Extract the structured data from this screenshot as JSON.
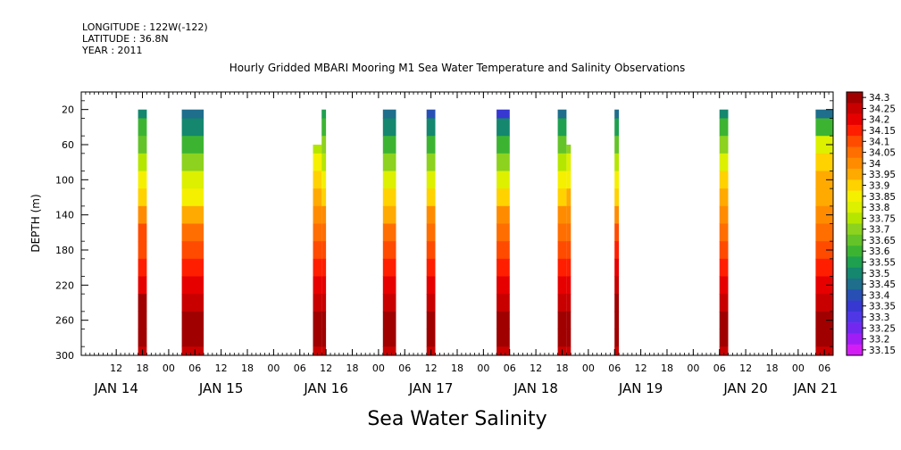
{
  "header": {
    "longitude": "LONGITUDE : 122W(-122)",
    "latitude": "LATITUDE : 36.8N",
    "year": "YEAR : 2011",
    "title": "Hourly Gridded MBARI Mooring M1 Sea Water Temperature and Salinity Observations"
  },
  "chart_data": {
    "type": "heatmap",
    "title": "Hourly Gridded MBARI Mooring M1 Sea Water Temperature and Salinity Observations",
    "xlabel": "Sea Water Salinity",
    "ylabel": "DEPTH (m)",
    "x_tick_labels": [
      "12",
      "18",
      "00",
      "06",
      "12",
      "18",
      "00",
      "06",
      "12",
      "18",
      "00",
      "06",
      "12",
      "18",
      "00",
      "06",
      "12",
      "18",
      "00",
      "06",
      "12",
      "18",
      "00",
      "06",
      "12",
      "18",
      "00",
      "06"
    ],
    "x_tick_hours": [
      12,
      18,
      24,
      30,
      36,
      42,
      48,
      54,
      60,
      66,
      72,
      78,
      84,
      90,
      96,
      102,
      108,
      114,
      120,
      126,
      132,
      138,
      144,
      150,
      156,
      162,
      168,
      174
    ],
    "x_range_hours": [
      4,
      176
    ],
    "x_origin": "JAN 14 00:00",
    "date_labels": [
      {
        "label": "JAN 14",
        "hour": 12
      },
      {
        "label": "JAN 15",
        "hour": 36
      },
      {
        "label": "JAN 16",
        "hour": 60
      },
      {
        "label": "JAN 17",
        "hour": 84
      },
      {
        "label": "JAN 18",
        "hour": 108
      },
      {
        "label": "JAN 19",
        "hour": 132
      },
      {
        "label": "JAN 20",
        "hour": 156
      },
      {
        "label": "JAN 21",
        "hour": 172
      }
    ],
    "y_ticks": [
      20,
      60,
      100,
      140,
      180,
      220,
      260,
      300
    ],
    "y_range": [
      0,
      300
    ],
    "y_inverted": true,
    "colorbar": {
      "levels": [
        "34.3",
        "34.25",
        "34.2",
        "34.15",
        "34.1",
        "34.05",
        "34",
        "33.95",
        "33.9",
        "33.85",
        "33.8",
        "33.75",
        "33.7",
        "33.65",
        "33.6",
        "33.55",
        "33.5",
        "33.45",
        "33.4",
        "33.35",
        "33.3",
        "33.25",
        "33.2",
        "33.15"
      ],
      "colors": [
        "#a00000",
        "#c80000",
        "#e60000",
        "#ff1e00",
        "#ff4b00",
        "#ff6e00",
        "#ff8c00",
        "#ffaa00",
        "#ffd200",
        "#f5f000",
        "#dcf000",
        "#b4e600",
        "#8cd21e",
        "#64c328",
        "#3cb432",
        "#1ea050",
        "#14876e",
        "#1e6e8c",
        "#2850b4",
        "#3737d2",
        "#5037e6",
        "#7328f0",
        "#a01ef5",
        "#d21ef5"
      ]
    },
    "depth_levels": [
      20,
      40,
      60,
      80,
      100,
      120,
      140,
      160,
      180,
      200,
      220,
      240,
      260,
      280,
      300
    ],
    "segments": [
      {
        "start": 17,
        "end": 19,
        "top": 20,
        "profile": [
          33.45,
          33.55,
          33.6,
          33.7,
          33.8,
          33.85,
          33.95,
          34.05,
          34.05,
          34.1,
          34.15,
          34.25,
          34.25,
          34.3,
          34.2
        ]
      },
      {
        "start": 27,
        "end": 32,
        "top": 20,
        "profile": [
          33.4,
          33.45,
          33.55,
          33.65,
          33.75,
          33.8,
          33.9,
          34.0,
          34.05,
          34.1,
          34.15,
          34.2,
          34.25,
          34.25,
          34.2
        ]
      },
      {
        "start": 57,
        "end": 59,
        "top": 60,
        "profile": [
          33.7,
          33.7,
          33.7,
          33.8,
          33.85,
          33.9,
          33.95,
          34.0,
          34.05,
          34.1,
          34.15,
          34.2,
          34.25,
          34.25,
          34.2
        ]
      },
      {
        "start": 59,
        "end": 60,
        "top": 20,
        "profile": [
          33.5,
          33.55,
          33.65,
          33.7,
          33.8,
          33.85,
          33.95,
          34.0,
          34.05,
          34.1,
          34.15,
          34.2,
          34.25,
          34.25,
          34.2
        ]
      },
      {
        "start": 73,
        "end": 76,
        "top": 20,
        "profile": [
          33.4,
          33.45,
          33.55,
          33.65,
          33.75,
          33.85,
          33.9,
          34.0,
          34.05,
          34.1,
          34.15,
          34.2,
          34.25,
          34.25,
          34.2
        ]
      },
      {
        "start": 83,
        "end": 85,
        "top": 20,
        "profile": [
          33.35,
          33.45,
          33.55,
          33.65,
          33.75,
          33.85,
          33.95,
          34.0,
          34.05,
          34.1,
          34.15,
          34.2,
          34.25,
          34.25,
          34.2
        ]
      },
      {
        "start": 99,
        "end": 102,
        "top": 20,
        "profile": [
          33.3,
          33.45,
          33.55,
          33.65,
          33.75,
          33.85,
          33.95,
          34.0,
          34.05,
          34.1,
          34.15,
          34.2,
          34.25,
          34.25,
          34.2
        ]
      },
      {
        "start": 113,
        "end": 115,
        "top": 20,
        "profile": [
          33.4,
          33.5,
          33.6,
          33.7,
          33.8,
          33.85,
          33.95,
          34.0,
          34.05,
          34.1,
          34.15,
          34.2,
          34.25,
          34.25,
          34.2
        ]
      },
      {
        "start": 115,
        "end": 116,
        "top": 60,
        "profile": [
          33.6,
          33.6,
          33.65,
          33.75,
          33.8,
          33.9,
          33.95,
          34.0,
          34.05,
          34.1,
          34.15,
          34.2,
          34.25,
          34.25,
          34.2
        ]
      },
      {
        "start": 126,
        "end": 127,
        "top": 20,
        "profile": [
          33.4,
          33.5,
          33.6,
          33.7,
          33.8,
          33.85,
          33.95,
          34.05,
          34.1,
          34.15,
          34.2,
          34.25,
          34.25,
          34.3,
          34.2
        ]
      },
      {
        "start": 150,
        "end": 152,
        "top": 20,
        "profile": [
          33.45,
          33.55,
          33.65,
          33.75,
          33.85,
          33.9,
          33.95,
          34.0,
          34.05,
          34.1,
          34.15,
          34.2,
          34.25,
          34.25,
          34.2
        ]
      },
      {
        "start": 172,
        "end": 176,
        "top": 20,
        "profile": [
          33.4,
          33.55,
          33.75,
          33.85,
          33.9,
          33.9,
          33.95,
          34.0,
          34.05,
          34.1,
          34.15,
          34.2,
          34.25,
          34.25,
          34.2
        ]
      }
    ]
  }
}
